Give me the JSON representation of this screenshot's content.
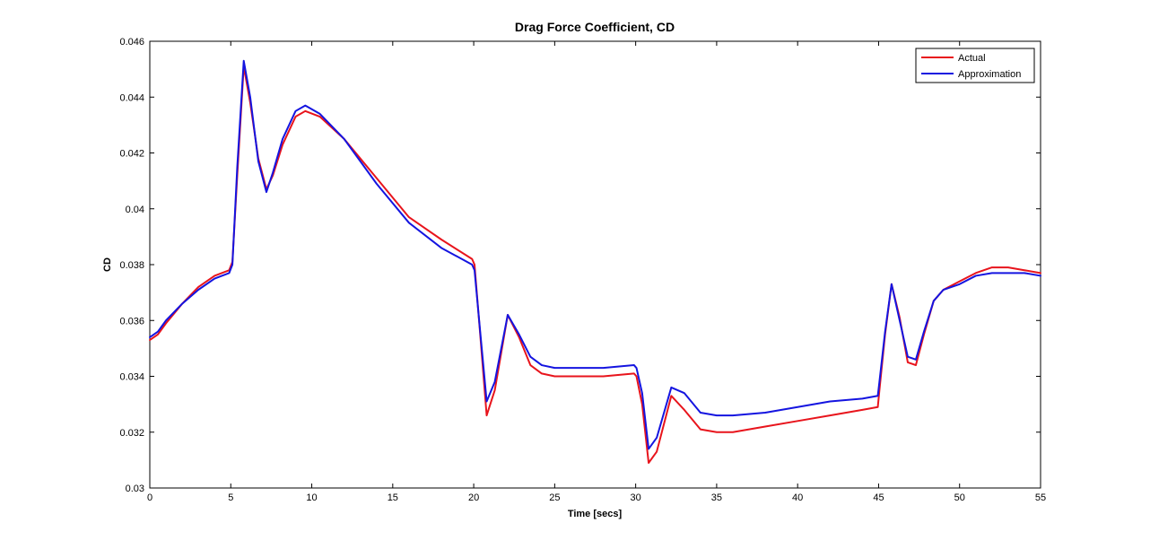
{
  "chart_data": {
    "type": "line",
    "title": "Drag Force Coefficient, CD",
    "xlabel": "Time [secs]",
    "ylabel": "CD",
    "xlim": [
      0,
      55
    ],
    "ylim": [
      0.03,
      0.046
    ],
    "x_ticks": [
      0,
      5,
      10,
      15,
      20,
      25,
      30,
      35,
      40,
      45,
      50,
      55
    ],
    "x_tick_labels": [
      "0",
      "5",
      "10",
      "15",
      "20",
      "25",
      "30",
      "35",
      "40",
      "45",
      "50",
      "55"
    ],
    "y_ticks": [
      0.03,
      0.032,
      0.034,
      0.036,
      0.038,
      0.04,
      0.042,
      0.044,
      0.046
    ],
    "y_tick_labels": [
      "0.03",
      "0.032",
      "0.034",
      "0.036",
      "0.038",
      "0.04",
      "0.042",
      "0.044",
      "0.046"
    ],
    "grid": false,
    "legend_position": "top-right",
    "series": [
      {
        "name": "Actual",
        "color": "#e8141c",
        "x": [
          0,
          0.5,
          1,
          2,
          3,
          4,
          4.9,
          5.1,
          5.4,
          5.8,
          6.2,
          6.7,
          7.2,
          7.6,
          8.2,
          9,
          9.6,
          10.5,
          12,
          14,
          16,
          18,
          19.9,
          20.05,
          20.4,
          20.8,
          21.3,
          22.1,
          22.8,
          23.5,
          24.2,
          25,
          26.5,
          28,
          29.9,
          30.05,
          30.4,
          30.8,
          31.3,
          32.2,
          33,
          34,
          35,
          36,
          38,
          40,
          42,
          44,
          44.95,
          45.05,
          45.4,
          45.8,
          46.3,
          46.8,
          47.3,
          47.8,
          48.4,
          49,
          50,
          51,
          52,
          53,
          54,
          55
        ],
        "values": [
          0.0353,
          0.0355,
          0.0359,
          0.0366,
          0.0372,
          0.0376,
          0.0378,
          0.0381,
          0.0412,
          0.0451,
          0.0438,
          0.0418,
          0.0407,
          0.0412,
          0.0423,
          0.0433,
          0.0435,
          0.0433,
          0.0425,
          0.0411,
          0.0397,
          0.0389,
          0.0382,
          0.038,
          0.0355,
          0.0326,
          0.0335,
          0.0362,
          0.0354,
          0.0344,
          0.0341,
          0.034,
          0.034,
          0.034,
          0.0341,
          0.034,
          0.033,
          0.0309,
          0.0313,
          0.0333,
          0.0328,
          0.0321,
          0.032,
          0.032,
          0.0322,
          0.0324,
          0.0326,
          0.0328,
          0.0329,
          0.0335,
          0.0355,
          0.0373,
          0.0361,
          0.0345,
          0.0344,
          0.0355,
          0.0367,
          0.0371,
          0.0374,
          0.0377,
          0.0379,
          0.0379,
          0.0378,
          0.0377
        ]
      },
      {
        "name": "Approximation",
        "color": "#1414e0",
        "x": [
          0,
          0.5,
          1,
          2,
          3,
          4,
          4.9,
          5.1,
          5.4,
          5.8,
          6.2,
          6.7,
          7.2,
          7.6,
          8.2,
          9,
          9.6,
          10.5,
          12,
          14,
          16,
          18,
          19.9,
          20.05,
          20.4,
          20.8,
          21.3,
          22.1,
          22.8,
          23.5,
          24.2,
          25,
          26.5,
          28,
          29.9,
          30.05,
          30.4,
          30.8,
          31.3,
          32.2,
          33,
          34,
          35,
          36,
          38,
          40,
          42,
          44,
          44.95,
          45.05,
          45.4,
          45.8,
          46.3,
          46.8,
          47.3,
          47.8,
          48.4,
          49,
          50,
          51,
          52,
          53,
          54,
          55
        ],
        "values": [
          0.0354,
          0.0356,
          0.036,
          0.0366,
          0.0371,
          0.0375,
          0.0377,
          0.038,
          0.0415,
          0.0453,
          0.044,
          0.0417,
          0.0406,
          0.0413,
          0.0425,
          0.0435,
          0.0437,
          0.0434,
          0.0425,
          0.0409,
          0.0395,
          0.0386,
          0.038,
          0.0378,
          0.0356,
          0.0331,
          0.0338,
          0.0362,
          0.0355,
          0.0347,
          0.0344,
          0.0343,
          0.0343,
          0.0343,
          0.0344,
          0.0343,
          0.0334,
          0.0314,
          0.0318,
          0.0336,
          0.0334,
          0.0327,
          0.0326,
          0.0326,
          0.0327,
          0.0329,
          0.0331,
          0.0332,
          0.0333,
          0.0338,
          0.0356,
          0.0373,
          0.036,
          0.0347,
          0.0346,
          0.0356,
          0.0367,
          0.0371,
          0.0373,
          0.0376,
          0.0377,
          0.0377,
          0.0377,
          0.0376
        ]
      }
    ]
  }
}
